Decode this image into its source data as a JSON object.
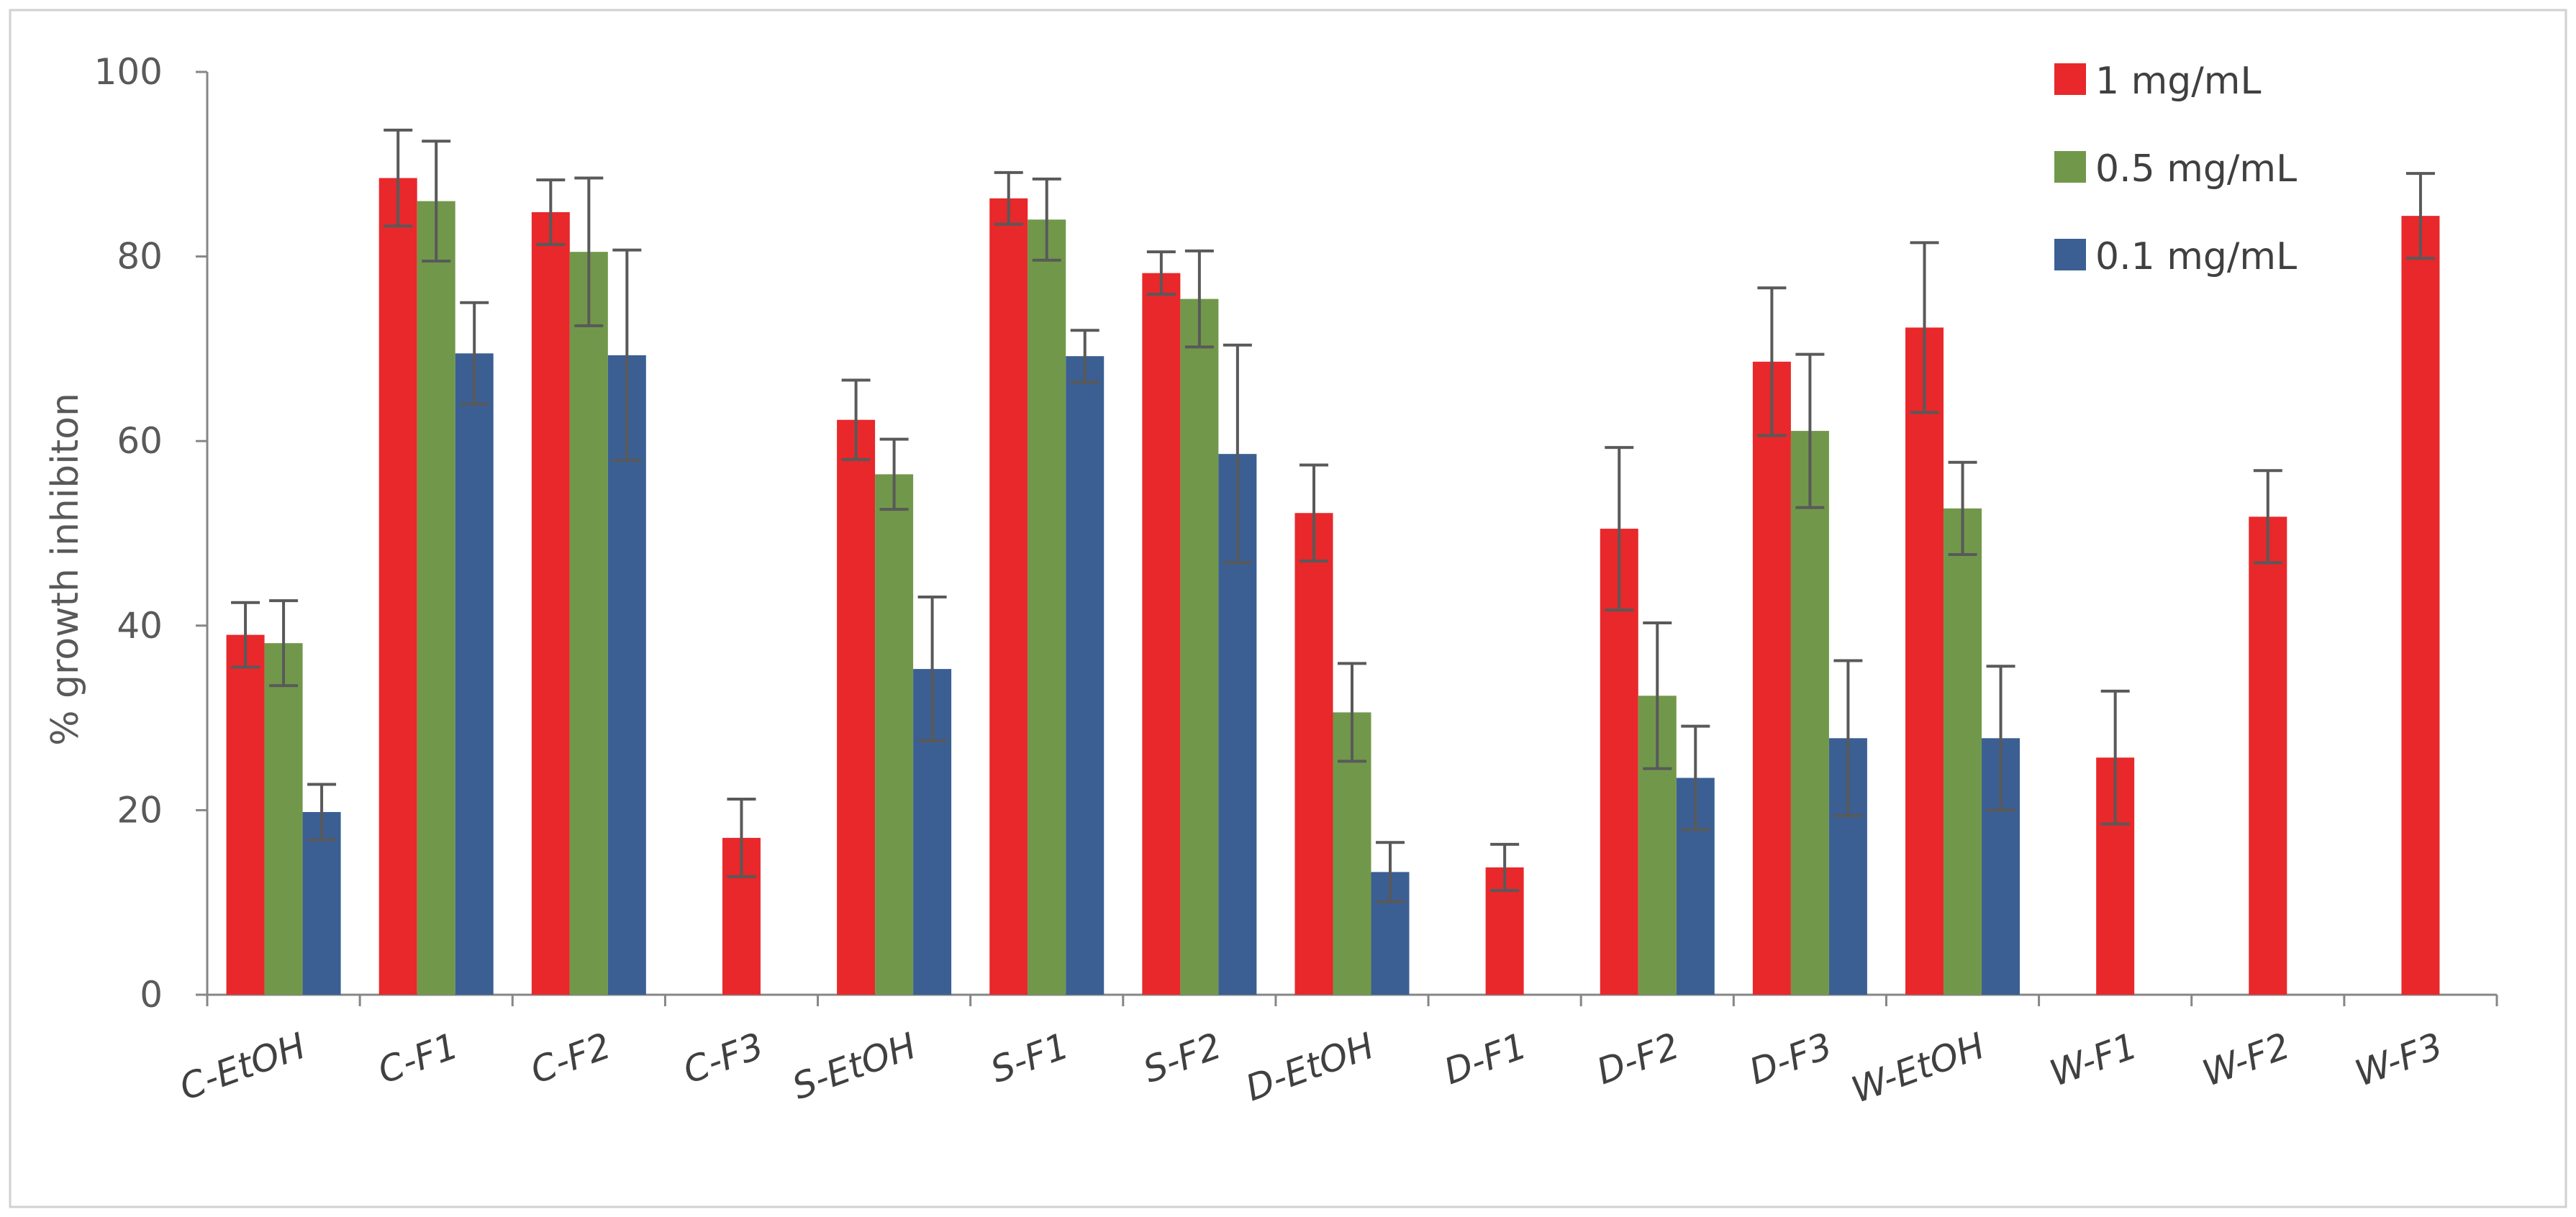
{
  "chart_data": {
    "type": "bar",
    "title": "",
    "xlabel": "",
    "ylabel": "% growth inhibiton",
    "ylim": [
      0,
      100
    ],
    "yticks": [
      0,
      20,
      40,
      60,
      80,
      100
    ],
    "grid": false,
    "legend_position": "top-right",
    "categories": [
      "C-EtOH",
      "C-F1",
      "C-F2",
      "C-F3",
      "S-EtOH",
      "S-F1",
      "S-F2",
      "D-EtOH",
      "D-F1",
      "D-F2",
      "D-F3",
      "W-EtOH",
      "W-F1",
      "W-F2",
      "W-F3"
    ],
    "series": [
      {
        "name": "1 mg/mL",
        "color": "#e8282b",
        "values": [
          39,
          88.5,
          84.8,
          17,
          62.3,
          86.3,
          78.2,
          52.2,
          13.8,
          50.5,
          68.6,
          72.3,
          25.7,
          51.8,
          84.4
        ],
        "errors": [
          3.5,
          5.2,
          3.5,
          4.2,
          4.3,
          2.8,
          2.3,
          5.2,
          2.5,
          8.8,
          8,
          9.2,
          7.2,
          5,
          4.6
        ]
      },
      {
        "name": "0.5 mg/mL",
        "color": "#71984a",
        "values": [
          38.1,
          86,
          80.5,
          null,
          56.4,
          84,
          75.4,
          30.6,
          null,
          32.4,
          61.1,
          52.7,
          null,
          null,
          null
        ],
        "errors": [
          4.6,
          6.5,
          8,
          null,
          3.8,
          4.4,
          5.2,
          5.3,
          null,
          7.9,
          8.3,
          5,
          null,
          null,
          null
        ]
      },
      {
        "name": "0.1 mg/mL",
        "color": "#3b5f93",
        "values": [
          19.8,
          69.5,
          69.3,
          null,
          35.3,
          69.2,
          58.6,
          13.3,
          null,
          23.5,
          27.8,
          27.8,
          null,
          null,
          null
        ],
        "errors": [
          3,
          5.5,
          11.4,
          null,
          7.8,
          2.8,
          11.8,
          3.2,
          null,
          5.6,
          8.4,
          7.8,
          null,
          null,
          null
        ]
      }
    ]
  }
}
